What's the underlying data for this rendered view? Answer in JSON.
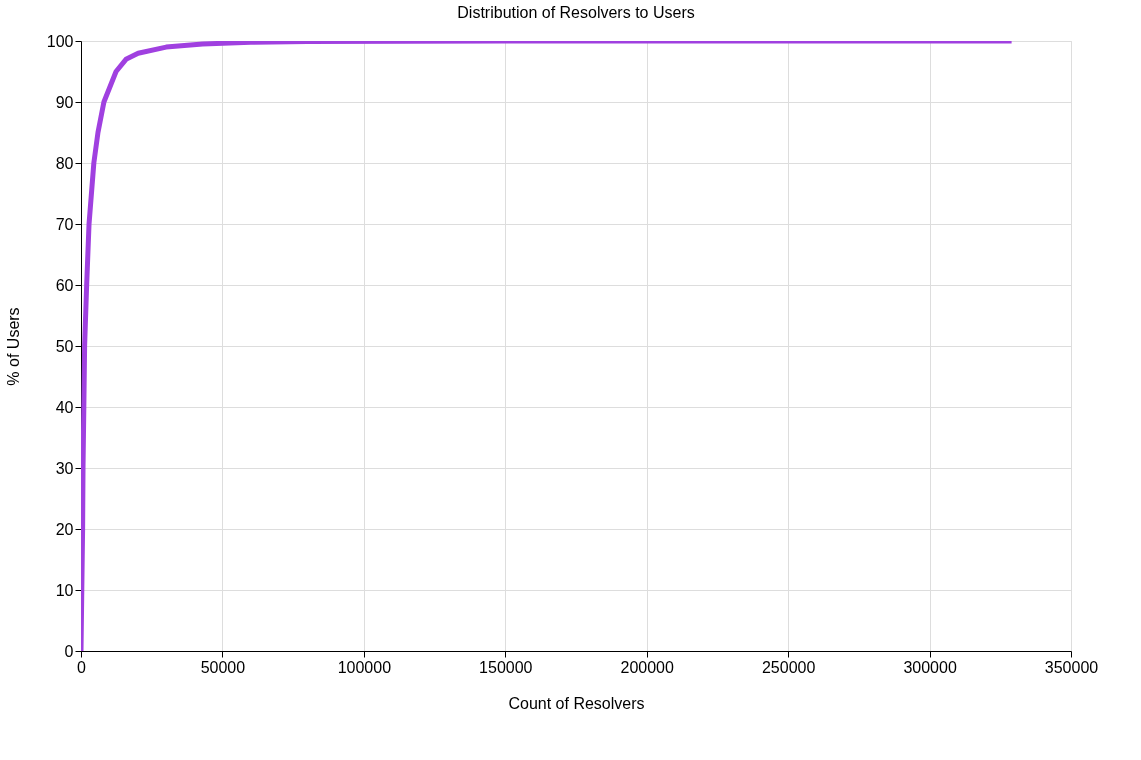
{
  "chart_data": {
    "type": "line",
    "title": "Distribution of Resolvers to Users",
    "xlabel": "Count of Resolvers",
    "ylabel": "% of Users",
    "x": [
      0,
      280,
      570,
      710,
      1000,
      1280,
      2000,
      2840,
      4540,
      6000,
      8100,
      12400,
      15900,
      20200,
      30100,
      43000,
      60000,
      80000,
      150000,
      250000,
      329000
    ],
    "series": [
      {
        "color": "#a040e0",
        "values": [
          0,
          10,
          20,
          30,
          40,
          50,
          60,
          70,
          80,
          85,
          90,
          95,
          97,
          98,
          99,
          99.5,
          99.8,
          99.9,
          100,
          100,
          100
        ]
      }
    ],
    "xlim": [
      0,
      350000
    ],
    "ylim": [
      0,
      100
    ],
    "xticks": [
      0,
      50000,
      100000,
      150000,
      200000,
      250000,
      300000,
      350000
    ],
    "yticks": [
      0,
      10,
      20,
      30,
      40,
      50,
      60,
      70,
      80,
      90,
      100
    ],
    "grid": true,
    "marker": "none",
    "line_style": "solid"
  }
}
